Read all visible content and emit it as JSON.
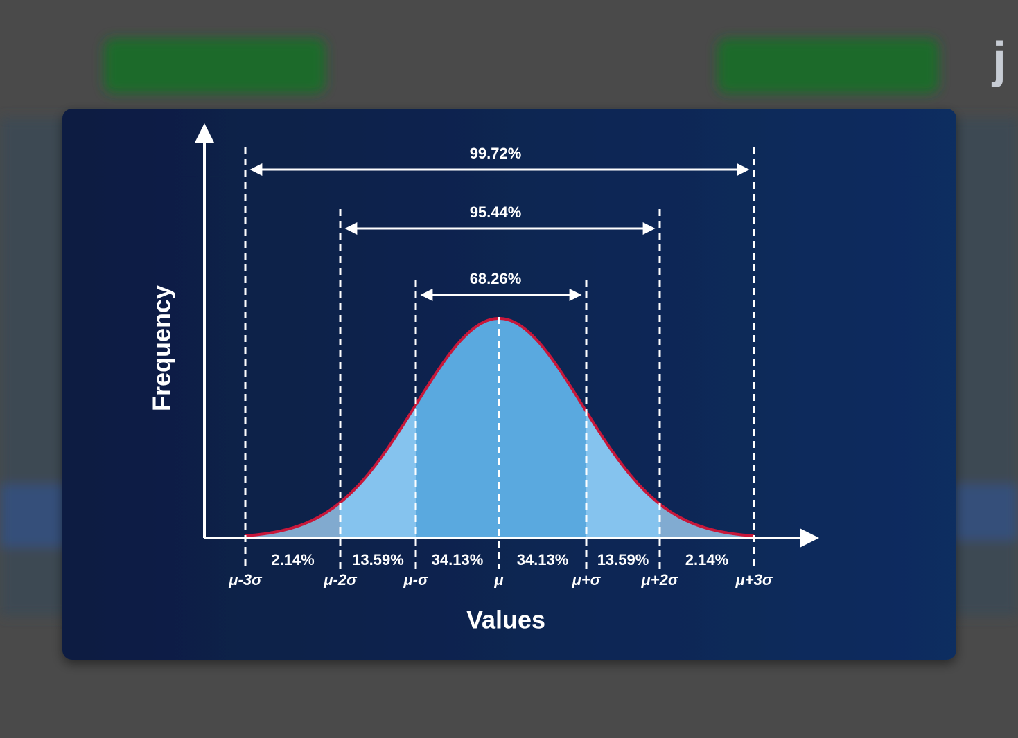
{
  "background": {
    "logo": "j"
  },
  "diagram": {
    "ranges": [
      "99.72%",
      "95.44%",
      "68.26%"
    ],
    "y_axis_label": "Frequency",
    "x_axis_label": "Values",
    "segments": [
      "2.14%",
      "13.59%",
      "34.13%",
      "34.13%",
      "13.59%",
      "2.14%"
    ],
    "ticks": [
      "μ-3σ",
      "μ-2σ",
      "μ-σ",
      "μ",
      "μ+σ",
      "μ+2σ",
      "μ+3σ"
    ]
  }
}
